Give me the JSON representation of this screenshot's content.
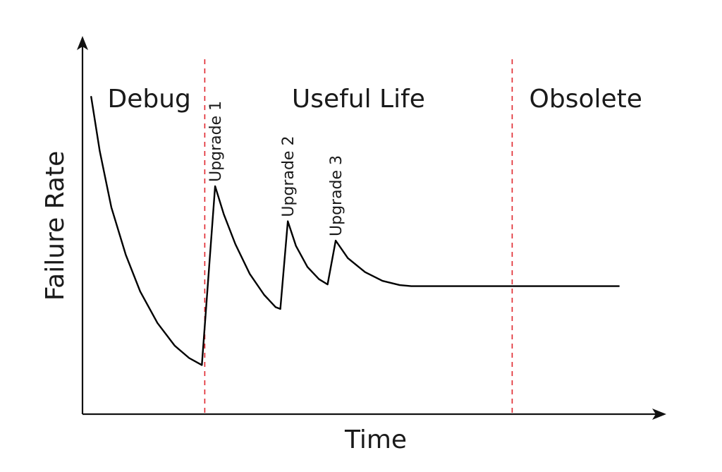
{
  "chart_data": {
    "type": "line",
    "title": "",
    "xlabel": "Time",
    "ylabel": "Failure Rate",
    "xlim": [
      0,
      100
    ],
    "ylim": [
      0,
      100
    ],
    "grid": false,
    "legend": "none",
    "ticks": "none",
    "phases": [
      {
        "label": "Debug",
        "start": 0,
        "end": 21.2
      },
      {
        "label": "Useful Life",
        "start": 21.2,
        "end": 74.5
      },
      {
        "label": "Obsolete",
        "start": 74.5,
        "end": 100
      }
    ],
    "dividers": [
      21.2,
      74.5
    ],
    "upgrades": [
      {
        "label": "Upgrade 1",
        "x": 23.0,
        "y": 65.0
      },
      {
        "label": "Upgrade 2",
        "x": 35.6,
        "y": 55.0
      },
      {
        "label": "Upgrade 3",
        "x": 43.9,
        "y": 49.5
      }
    ],
    "series": [
      {
        "values": [
          [
            1.5,
            90.5
          ],
          [
            3.0,
            75.0
          ],
          [
            5.0,
            59.0
          ],
          [
            7.5,
            45.5
          ],
          [
            10.0,
            35.0
          ],
          [
            13.0,
            26.0
          ],
          [
            16.0,
            19.5
          ],
          [
            18.5,
            16.0
          ],
          [
            20.7,
            14.0
          ],
          [
            23.0,
            65.0
          ],
          [
            24.5,
            57.0
          ],
          [
            26.5,
            48.5
          ],
          [
            29.0,
            40.0
          ],
          [
            31.5,
            34.0
          ],
          [
            33.5,
            30.5
          ],
          [
            34.3,
            30.0
          ],
          [
            35.6,
            55.0
          ],
          [
            37.0,
            48.0
          ],
          [
            39.0,
            42.0
          ],
          [
            41.0,
            38.5
          ],
          [
            42.5,
            37.0
          ],
          [
            43.9,
            49.5
          ],
          [
            46.0,
            44.5
          ],
          [
            49.0,
            40.5
          ],
          [
            52.0,
            38.0
          ],
          [
            55.0,
            36.8
          ],
          [
            57.0,
            36.5
          ],
          [
            64.0,
            36.5
          ],
          [
            75.0,
            36.5
          ],
          [
            93.0,
            36.5
          ]
        ]
      }
    ],
    "colors": {
      "curve": "#000000",
      "axes": "#111111",
      "divider": "#e0252c"
    }
  }
}
